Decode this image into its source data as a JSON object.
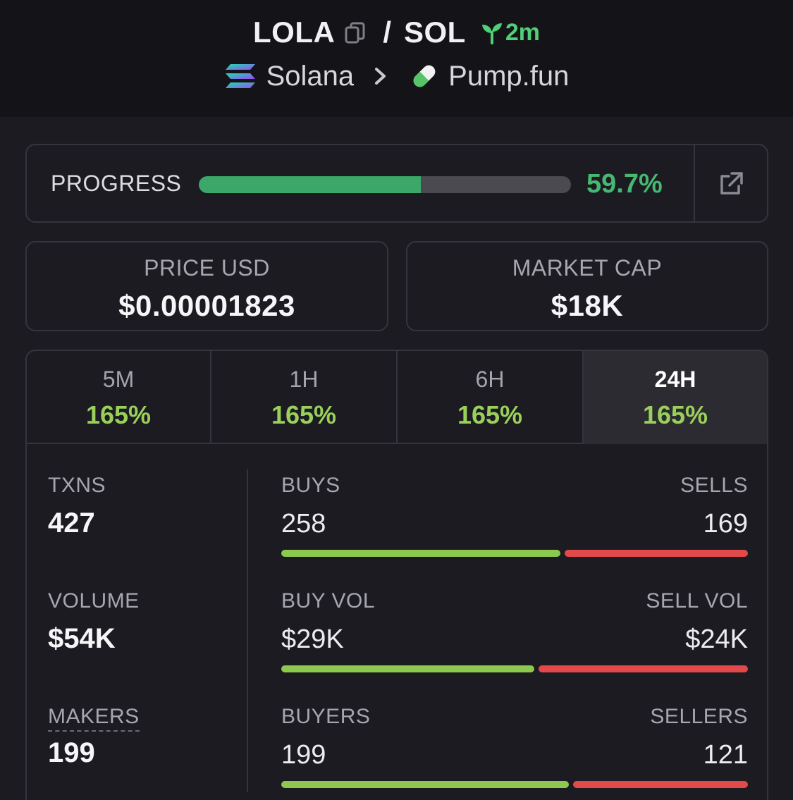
{
  "header": {
    "token": "LOLA",
    "slash": "/",
    "quote": "SOL",
    "age": "2m",
    "chain": "Solana",
    "dex": "Pump.fun"
  },
  "progress": {
    "label": "PROGRESS",
    "value_text": "59.7%",
    "fraction": 0.597
  },
  "price": {
    "label": "PRICE USD",
    "value": "$0.00001823"
  },
  "market_cap": {
    "label": "MARKET CAP",
    "value": "$18K"
  },
  "tabs": [
    {
      "label": "5M",
      "value": "165%"
    },
    {
      "label": "1H",
      "value": "165%"
    },
    {
      "label": "6H",
      "value": "165%"
    },
    {
      "label": "24H",
      "value": "165%",
      "active": true
    }
  ],
  "metrics": {
    "txns": {
      "label": "TXNS",
      "value": "427"
    },
    "volume": {
      "label": "VOLUME",
      "value": "$54K"
    },
    "makers": {
      "label": "MAKERS",
      "value": "199"
    }
  },
  "splits": {
    "txns": {
      "left_label": "BUYS",
      "left_value": "258",
      "right_label": "SELLS",
      "right_value": "169",
      "left_count": 258,
      "right_count": 169
    },
    "volume": {
      "left_label": "BUY VOL",
      "left_value": "$29K",
      "right_label": "SELL VOL",
      "right_value": "$24K",
      "left_count": 29,
      "right_count": 24
    },
    "makers": {
      "left_label": "BUYERS",
      "left_value": "199",
      "right_label": "SELLERS",
      "right_value": "121",
      "left_count": 199,
      "right_count": 121
    }
  },
  "colors": {
    "positive": "#9ad05a",
    "progress": "#3ba86a",
    "buy_bar": "#8ec94f",
    "sell_bar": "#e2494b",
    "age": "#4fcf76"
  },
  "icons": [
    "copy-icon",
    "sprout-icon",
    "solana-icon",
    "chevron-right-icon",
    "pill-icon",
    "external-link-icon"
  ]
}
